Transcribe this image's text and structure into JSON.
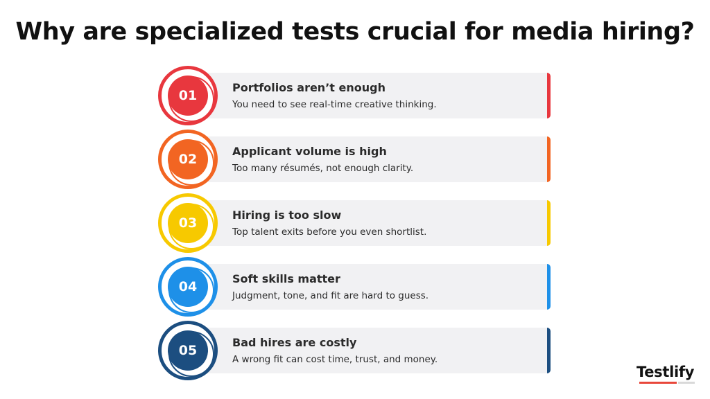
{
  "title": "Why are specialized tests crucial for media hiring?",
  "items": [
    {
      "number": "01",
      "title": "Portfolios aren’t enough",
      "description": "You need to see real-time creative thinking.",
      "color": "#e8373e"
    },
    {
      "number": "02",
      "title": "Applicant volume is high",
      "description": "Too many résumés, not enough clarity.",
      "color": "#f26522"
    },
    {
      "number": "03",
      "title": "Hiring is too slow",
      "description": "Top talent exits before you even shortlist.",
      "color": "#f7c900"
    },
    {
      "number": "04",
      "title": "Soft skills matter",
      "description": "Judgment, tone, and fit are hard to guess.",
      "color": "#1e90e8"
    },
    {
      "number": "05",
      "title": "Bad hires are costly",
      "description": "A wrong fit can cost time, trust, and money.",
      "color": "#1c4e80"
    }
  ],
  "brand": {
    "name": "Testlify"
  }
}
